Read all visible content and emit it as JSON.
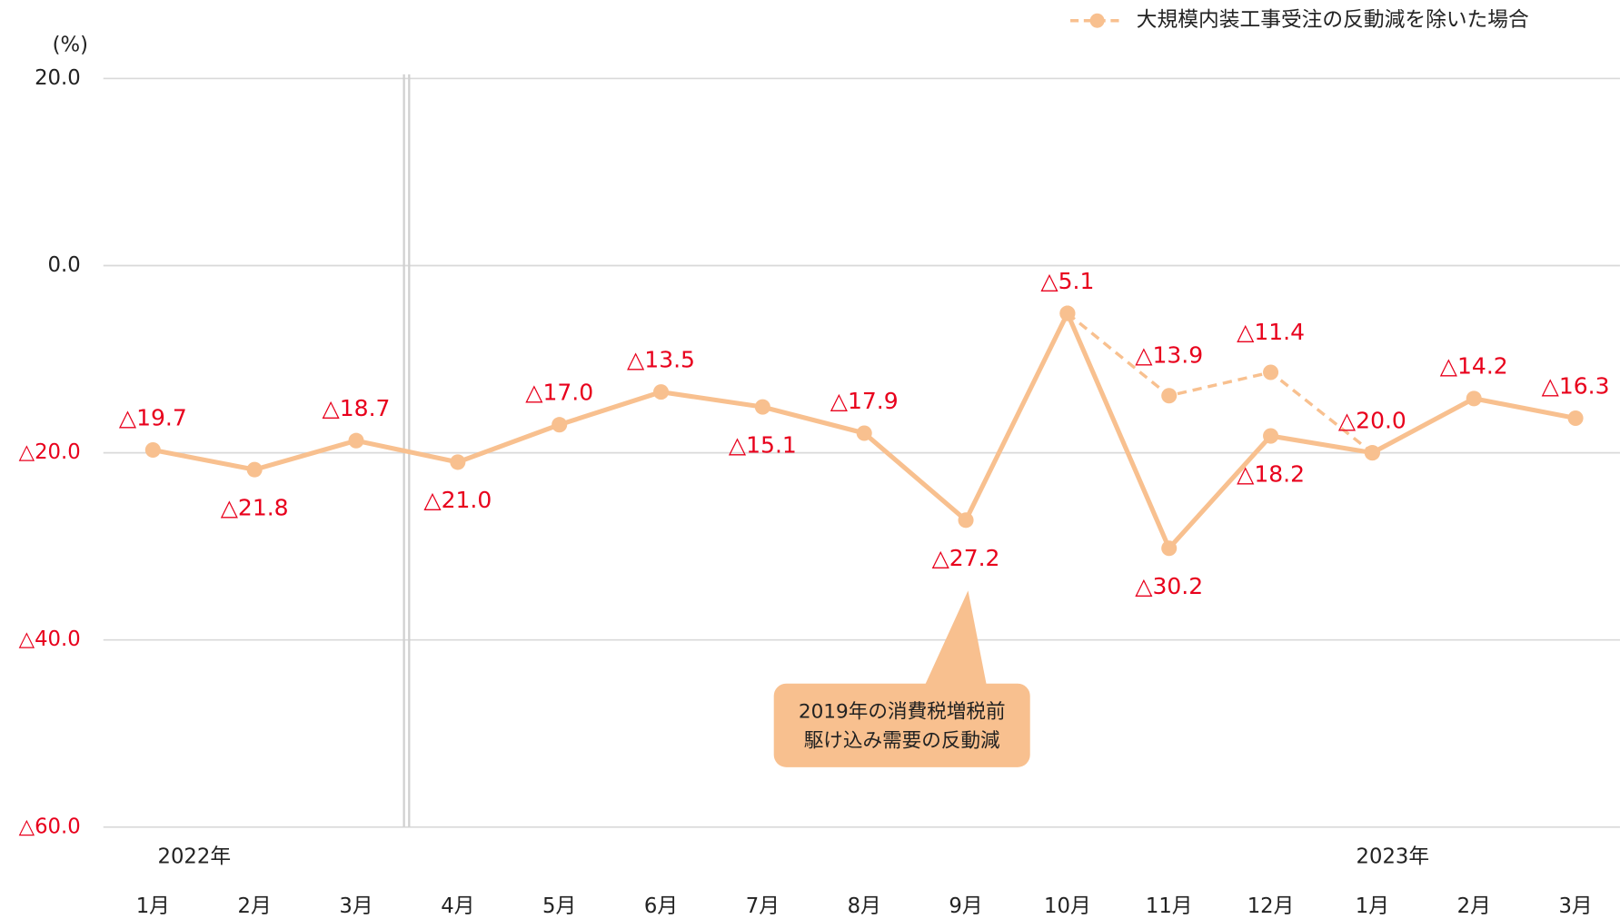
{
  "chart_data": {
    "type": "line",
    "y_unit": "(%)",
    "categories": [
      "1月",
      "2月",
      "3月",
      "4月",
      "5月",
      "6月",
      "7月",
      "8月",
      "9月",
      "10月",
      "11月",
      "12月",
      "1月",
      "2月",
      "3月"
    ],
    "year_labels": [
      "2022年",
      "2023年"
    ],
    "series": [
      {
        "color": "#f8c08f",
        "values": [
          -19.7,
          -21.8,
          -18.7,
          -21.0,
          -17.0,
          -13.5,
          -15.1,
          -17.9,
          -27.2,
          -5.1,
          -30.2,
          -18.2,
          -20.0,
          -14.2,
          -16.3
        ],
        "value_labels": [
          "△19.7",
          "△21.8",
          "△18.7",
          "△21.0",
          "△17.0",
          "△13.5",
          "△15.1",
          "△17.9",
          "△27.2",
          "△5.1",
          "△30.2",
          "△18.2",
          "△20.0",
          "△14.2",
          "△16.3"
        ]
      },
      {
        "name": "大規模内装工事受注の反動減を除いた場合",
        "color": "#f8c08f",
        "dashed": true,
        "values": [
          null,
          null,
          null,
          null,
          null,
          null,
          null,
          null,
          null,
          -5.1,
          -13.9,
          -11.4,
          -20.0,
          null,
          null
        ],
        "value_labels": [
          null,
          null,
          null,
          null,
          null,
          null,
          null,
          null,
          null,
          null,
          "△13.9",
          "△11.4",
          null,
          null,
          null
        ]
      }
    ],
    "ylim": [
      -60,
      20
    ],
    "yticks": [
      {
        "value": 20,
        "label": "20.0"
      },
      {
        "value": 0,
        "label": "0.0"
      },
      {
        "value": -20,
        "label": "△20.0"
      },
      {
        "value": -40,
        "label": "△40.0"
      },
      {
        "value": -60,
        "label": "△60.0"
      }
    ],
    "grid": true,
    "legend": "top-right",
    "annotation": [
      "2019年の消費税増税前",
      "駆け込み需要の反動減"
    ]
  }
}
